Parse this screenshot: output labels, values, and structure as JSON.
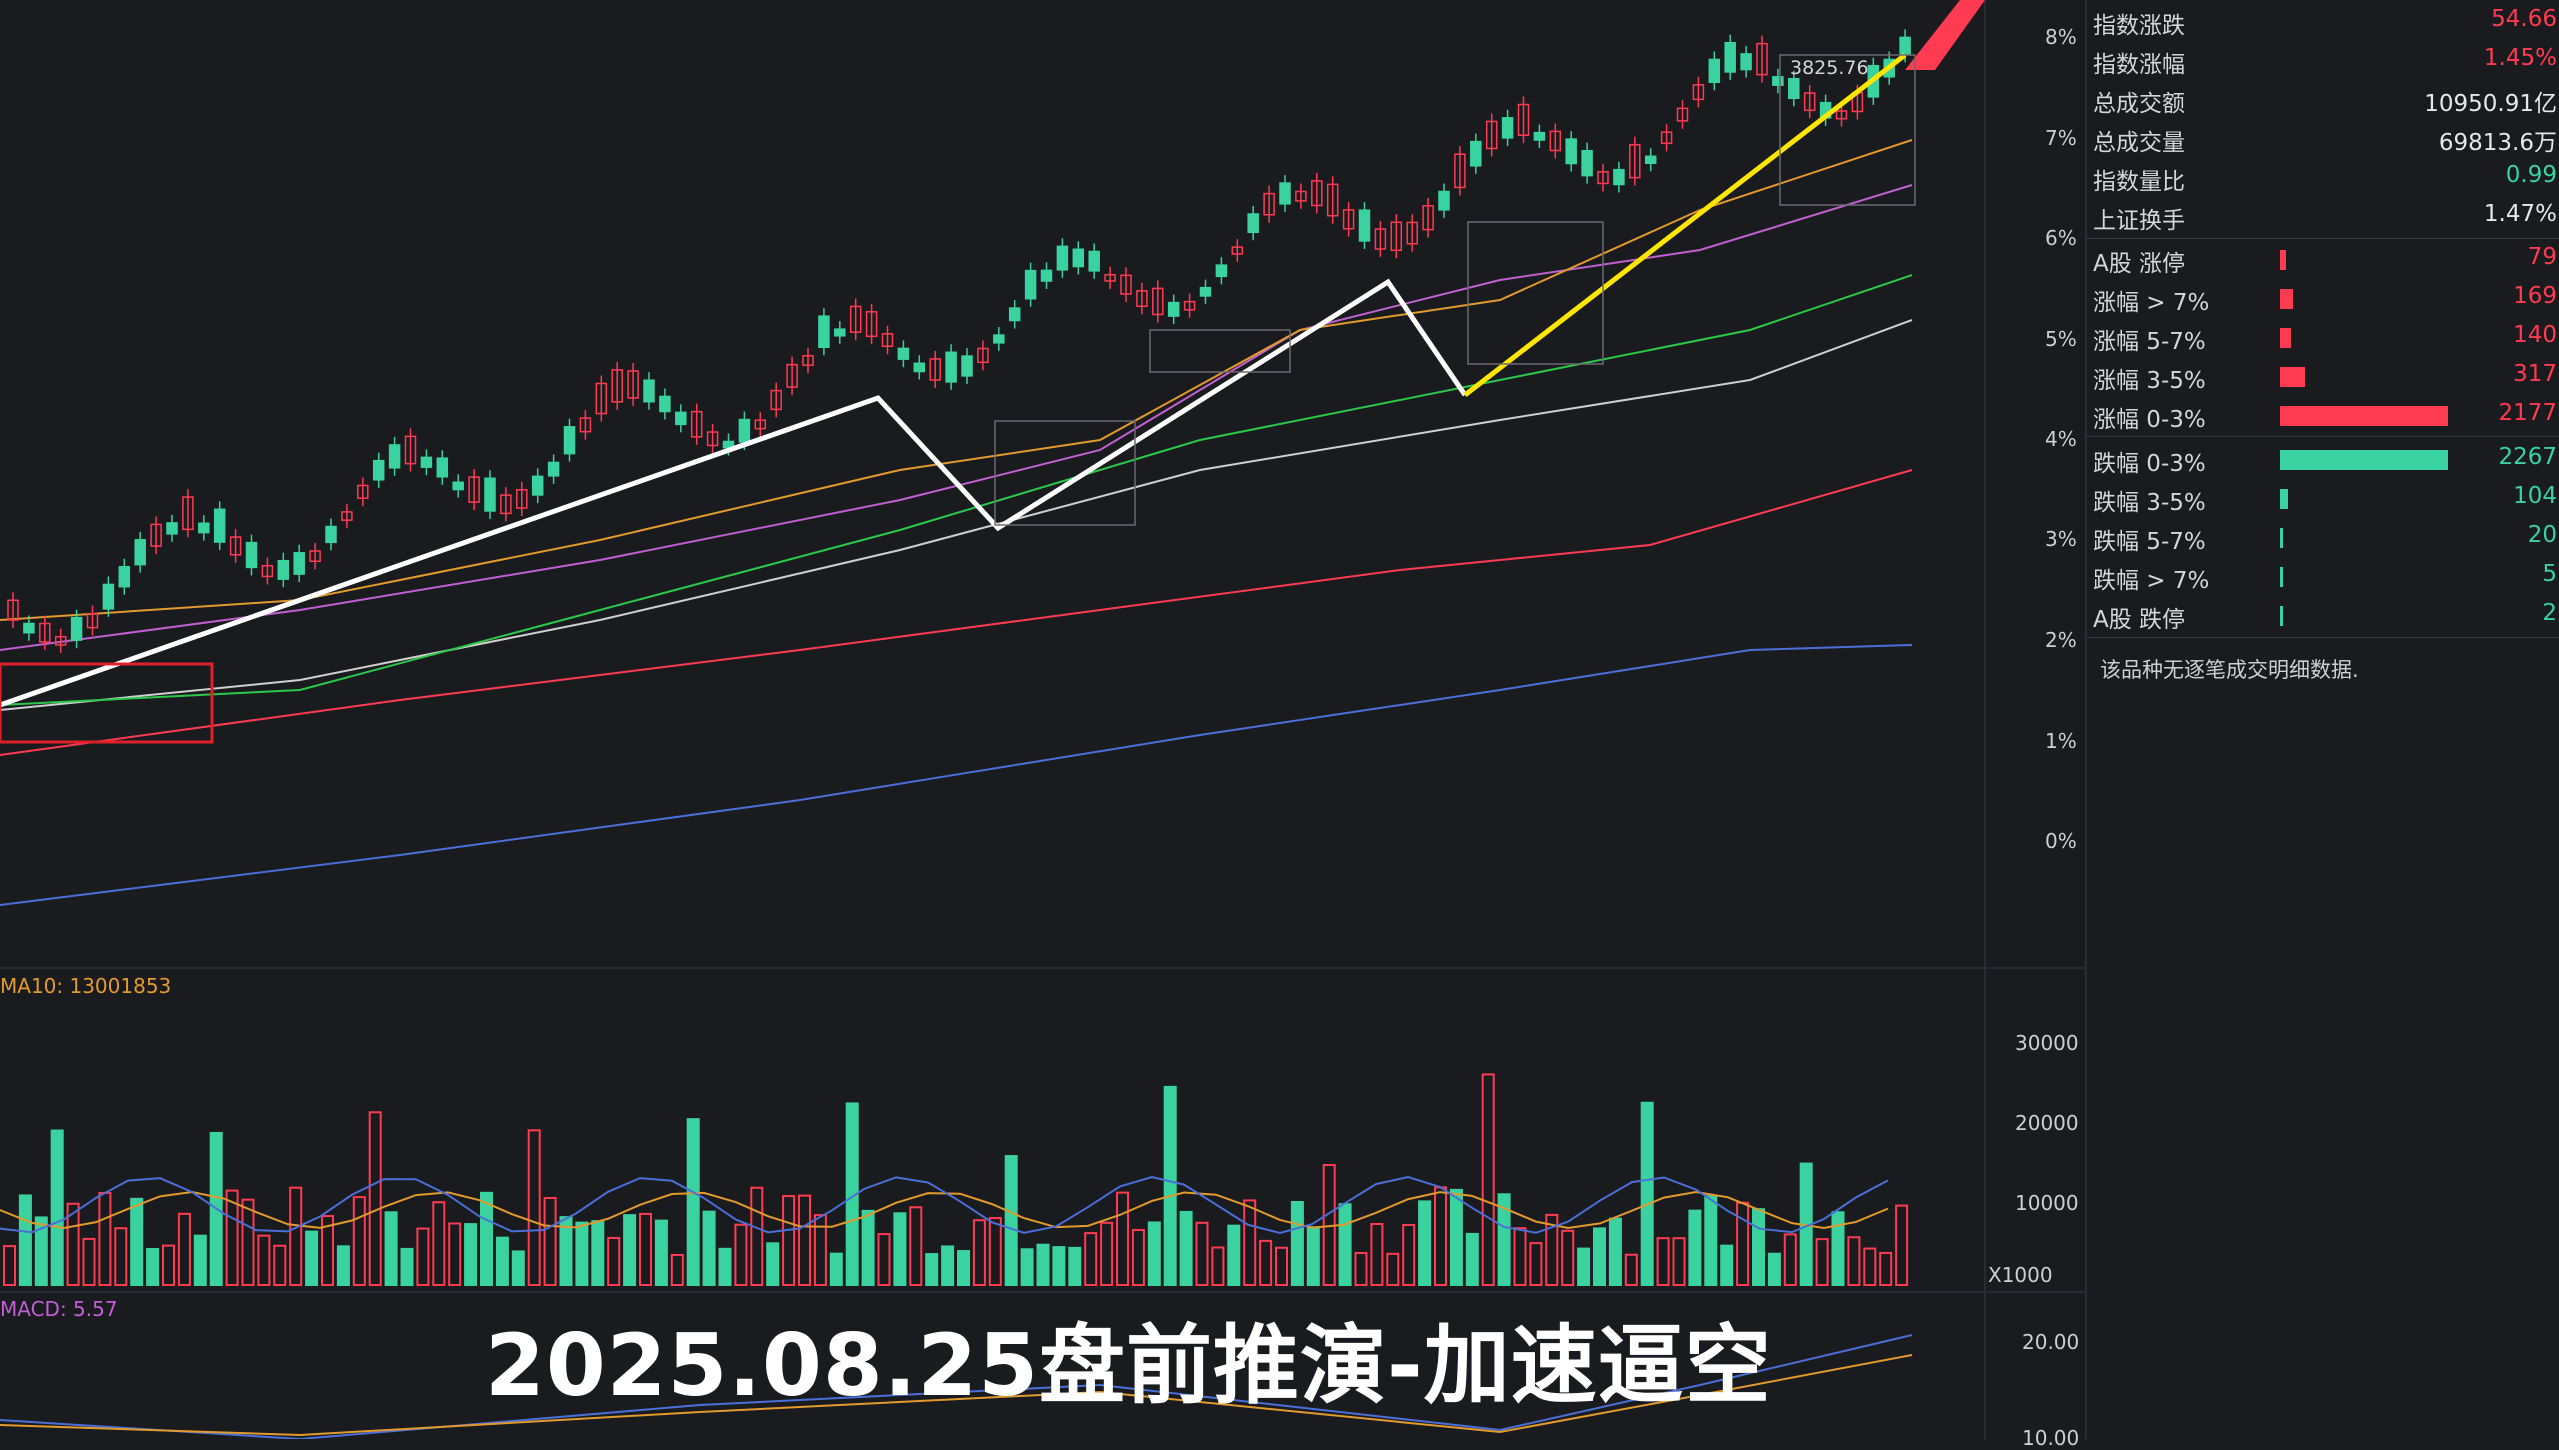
{
  "chart_data": {
    "type": "candlestick",
    "main_axis": {
      "labels": [
        "8%",
        "7%",
        "6%",
        "5%",
        "4%",
        "3%",
        "2%",
        "1%",
        "0%"
      ]
    },
    "price_marker": "3825.76",
    "volume_axis": {
      "labels": [
        "30000",
        "20000",
        "10000"
      ],
      "unit": "X1000"
    },
    "macd_axis": {
      "labels": [
        "20.00",
        "10.00"
      ]
    },
    "volume_ma_label": "MA10: 13001853",
    "macd_label": "MACD: 5.57"
  },
  "video_title": "2025.08.25盘前推演-加速逼空",
  "stats": [
    {
      "label": "指数涨跌",
      "value": "54.66",
      "color": "#ff3b52"
    },
    {
      "label": "指数涨幅",
      "value": "1.45%",
      "color": "#ff3b52"
    },
    {
      "label": "总成交额",
      "value": "10950.91亿",
      "color": "#e7e7e7"
    },
    {
      "label": "总成交量",
      "value": "69813.6万",
      "color": "#e7e7e7"
    },
    {
      "label": "指数量比",
      "value": "0.99",
      "color": "#3ad29f"
    },
    {
      "label": "上证换手",
      "value": "1.47%",
      "color": "#e7e7e7"
    }
  ],
  "breadth_up": [
    {
      "label": "A股 涨停",
      "value": "79",
      "bar_ratio": 0.036
    },
    {
      "label": "涨幅 > 7%",
      "value": "169",
      "bar_ratio": 0.078
    },
    {
      "label": "涨幅 5-7%",
      "value": "140",
      "bar_ratio": 0.065
    },
    {
      "label": "涨幅 3-5%",
      "value": "317",
      "bar_ratio": 0.146
    },
    {
      "label": "涨幅 0-3%",
      "value": "2177",
      "bar_ratio": 1.0
    }
  ],
  "breadth_down": [
    {
      "label": "跌幅 0-3%",
      "value": "2267",
      "bar_ratio": 1.0
    },
    {
      "label": "跌幅 3-5%",
      "value": "104",
      "bar_ratio": 0.046
    },
    {
      "label": "跌幅 5-7%",
      "value": "20",
      "bar_ratio": 0.012
    },
    {
      "label": "跌幅 > 7%",
      "value": "5",
      "bar_ratio": 0.006
    },
    {
      "label": "A股 跌停",
      "value": "2",
      "bar_ratio": 0.004
    }
  ],
  "no_data_note": "该品种无逐笔成交明细数据.",
  "colors": {
    "up": "#ff3b52",
    "down": "#3ad29f",
    "bg": "#1a1b1f"
  }
}
